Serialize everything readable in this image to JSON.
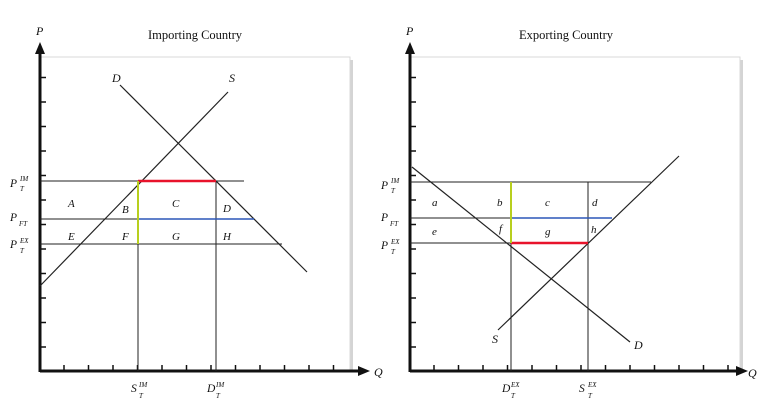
{
  "colors": {
    "background": "#ffffff",
    "axes": "#111111",
    "lines": "#222222",
    "red_segment": "#e8132b",
    "blue_segment": "#2b57b8",
    "green_segment": "#b8cf1e",
    "panel_shadow": "#c9c9c9"
  },
  "importing": {
    "title": "Importing Country",
    "axis_y": "P",
    "axis_x": "",
    "demand_label": "D",
    "supply_label": "S",
    "price_labels": [
      {
        "base": "P",
        "sup": "IM",
        "sub": "T"
      },
      {
        "base": "P",
        "sup": "",
        "sub": "FT"
      },
      {
        "base": "P",
        "sup": "EX",
        "sub": "T"
      }
    ],
    "area_labels": [
      "A",
      "B",
      "C",
      "D",
      "E",
      "F",
      "G",
      "H"
    ],
    "qty_labels": [
      {
        "base": "S",
        "sup": "IM",
        "sub": "T"
      },
      {
        "base": "D",
        "sup": "IM",
        "sub": "T"
      }
    ]
  },
  "exporting": {
    "title": "Exporting Country",
    "axis_y": "P",
    "axis_x": "Q",
    "demand_label": "D",
    "supply_label": "S",
    "price_labels": [
      {
        "base": "P",
        "sup": "IM",
        "sub": "T"
      },
      {
        "base": "P",
        "sup": "",
        "sub": "FT"
      },
      {
        "base": "P",
        "sup": "EX",
        "sub": "T"
      }
    ],
    "area_labels": [
      "a",
      "b",
      "c",
      "d",
      "e",
      "f",
      "g",
      "h"
    ],
    "qty_labels": [
      {
        "base": "D",
        "sup": "EX",
        "sub": "T"
      },
      {
        "base": "S",
        "sup": "EX",
        "sub": "T"
      }
    ]
  },
  "between_axis_label": "Q"
}
